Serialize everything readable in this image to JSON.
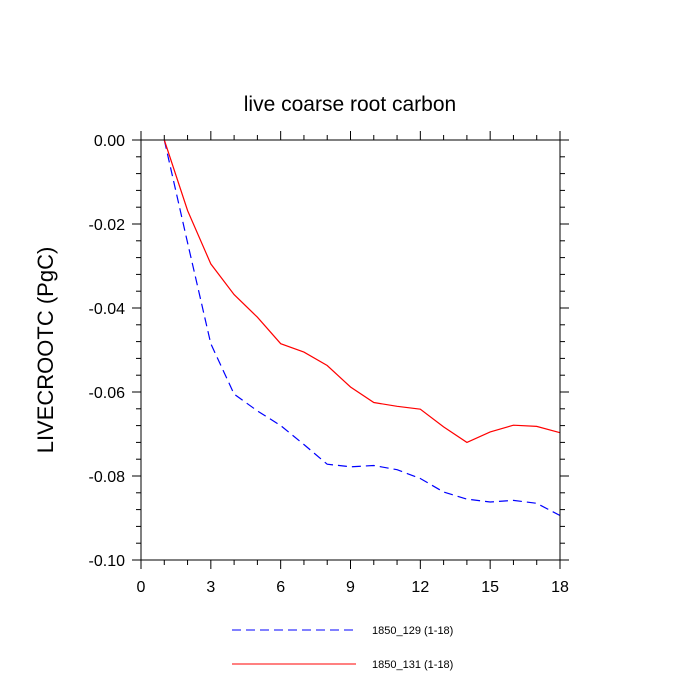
{
  "chart_data": {
    "type": "line",
    "title": "live coarse root carbon",
    "xlabel": "",
    "ylabel": "LIVECROOTC  (PgC)",
    "xlim": [
      0,
      18
    ],
    "ylim": [
      -0.1,
      0.0
    ],
    "xticks": [
      0,
      3,
      6,
      9,
      12,
      15,
      18
    ],
    "xtick_labels": [
      "0",
      "3",
      "6",
      "9",
      "12",
      "15",
      "18"
    ],
    "yticks": [
      0.0,
      -0.02,
      -0.04,
      -0.06,
      -0.08,
      -0.1
    ],
    "ytick_labels": [
      "0.00",
      "-0.02",
      "-0.04",
      "-0.06",
      "-0.08",
      "-0.10"
    ],
    "grid": false,
    "legend_position": "bottom",
    "series": [
      {
        "name": "1850_129 (1-18)",
        "color": "#0000ff",
        "style": "dashed",
        "x": [
          1,
          2,
          3,
          4,
          5,
          6,
          7,
          8,
          9,
          10,
          11,
          12,
          13,
          14,
          15,
          16,
          17,
          18
        ],
        "values": [
          0.0,
          -0.0245,
          -0.0485,
          -0.0605,
          -0.0645,
          -0.068,
          -0.0725,
          -0.0772,
          -0.0778,
          -0.0775,
          -0.0785,
          -0.0806,
          -0.0838,
          -0.0855,
          -0.0862,
          -0.0858,
          -0.0865,
          -0.0894
        ]
      },
      {
        "name": "1850_131 (1-18)",
        "color": "#ff0000",
        "style": "solid",
        "x": [
          1,
          2,
          3,
          4,
          5,
          6,
          7,
          8,
          9,
          10,
          11,
          12,
          13,
          14,
          15,
          16,
          17,
          18
        ],
        "values": [
          0.0,
          -0.0168,
          -0.0295,
          -0.0368,
          -0.0422,
          -0.0485,
          -0.0505,
          -0.0537,
          -0.0588,
          -0.0625,
          -0.0634,
          -0.0641,
          -0.0683,
          -0.072,
          -0.0695,
          -0.0679,
          -0.0682,
          -0.0697
        ]
      }
    ]
  }
}
